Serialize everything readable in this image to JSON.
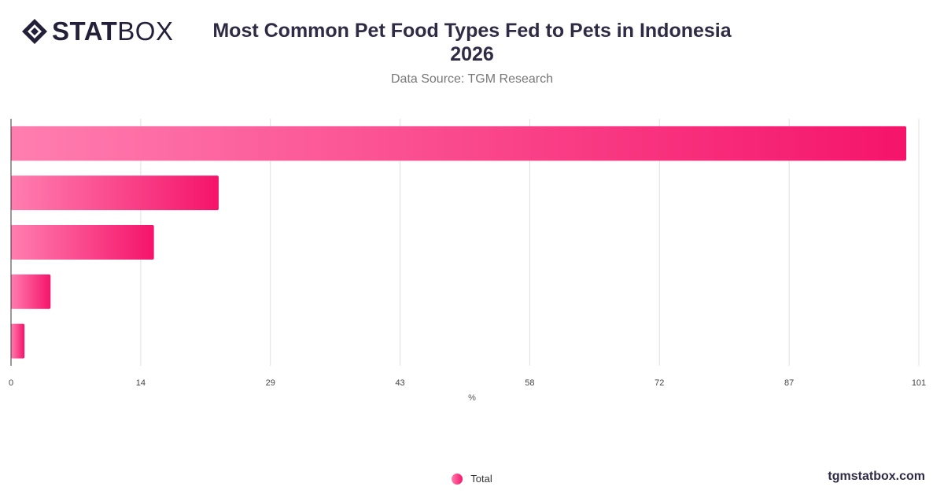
{
  "brand": {
    "logo_bold": "STAT",
    "logo_light": "BOX",
    "site": "tgmstatbox.com"
  },
  "header": {
    "title_line1": "Most Common Pet Food Types Fed to Pets in Indonesia",
    "title_line2": "2026",
    "subtitle": "Data Source: TGM Research"
  },
  "colors": {
    "bar_start": "#ff7eb0",
    "bar_end": "#f5146a",
    "grid": "#e0e0e0",
    "axis": "#333333"
  },
  "chart_data": {
    "type": "bar",
    "orientation": "horizontal",
    "categories": [
      "",
      "",
      "",
      "",
      ""
    ],
    "series": [
      {
        "name": "Total",
        "values": [
          99.6,
          23.1,
          15.9,
          4.4,
          1.5
        ]
      }
    ],
    "xlabel": "%",
    "ylabel": "",
    "xlim": [
      0,
      101
    ],
    "xticks": [
      "0",
      "14",
      "29",
      "43",
      "58",
      "72",
      "87",
      "101"
    ],
    "grid": true,
    "legend": "bottom-center"
  }
}
